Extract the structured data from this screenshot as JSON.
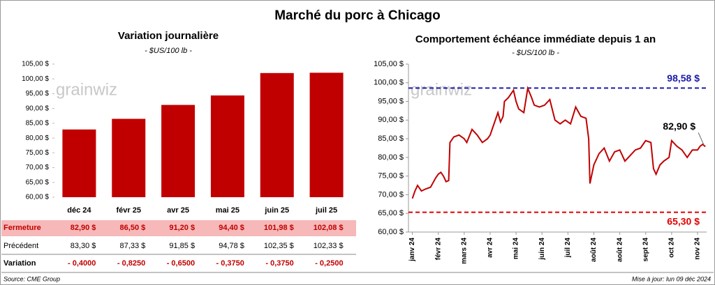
{
  "title": "Marché du porc à Chicago",
  "logo": "grainwiz",
  "chart_data": [
    {
      "type": "bar",
      "title": "Variation journalière",
      "subtitle": "- $US/100 lb -",
      "categories": [
        "déc 24",
        "févr 25",
        "avr 25",
        "mai 25",
        "juin 25",
        "juil 25"
      ],
      "values": [
        82.9,
        86.5,
        91.2,
        94.4,
        101.98,
        102.08
      ],
      "color": "#c00000",
      "ylim": [
        60,
        105
      ],
      "yticks": [
        {
          "value": 60,
          "label": "60,00 $"
        },
        {
          "value": 65,
          "label": "65,00 $"
        },
        {
          "value": 70,
          "label": "70,00 $"
        },
        {
          "value": 75,
          "label": "75,00 $"
        },
        {
          "value": 80,
          "label": "80,00 $"
        },
        {
          "value": 85,
          "label": "85,00 $"
        },
        {
          "value": 90,
          "label": "90,00 $"
        },
        {
          "value": 95,
          "label": "95,00 $"
        },
        {
          "value": 100,
          "label": "100,00 $"
        },
        {
          "value": 105,
          "label": "105,00 $"
        }
      ]
    },
    {
      "type": "line",
      "title": "Comportement échéance immédiate depuis 1 an",
      "subtitle": "- $US/100 lb -",
      "color": "#c00000",
      "x": [
        0,
        0.1,
        0.2,
        0.35,
        0.5,
        0.7,
        0.9,
        1.0,
        1.1,
        1.2,
        1.3,
        1.4,
        1.45,
        1.6,
        1.8,
        2.0,
        2.1,
        2.3,
        2.5,
        2.7,
        2.9,
        3.0,
        3.1,
        3.3,
        3.4,
        3.5,
        3.55,
        3.7,
        3.9,
        4.0,
        4.1,
        4.3,
        4.45,
        4.6,
        4.7,
        4.9,
        5.1,
        5.3,
        5.5,
        5.7,
        5.9,
        6.1,
        6.3,
        6.5,
        6.7,
        6.8,
        6.85,
        7.0,
        7.2,
        7.4,
        7.6,
        7.8,
        8.0,
        8.2,
        8.4,
        8.6,
        8.8,
        9.0,
        9.2,
        9.3,
        9.4,
        9.55,
        9.7,
        9.9,
        10.0,
        10.2,
        10.4,
        10.6,
        10.8,
        11.0,
        11.1,
        11.2,
        11.3
      ],
      "values": [
        69,
        71,
        72.5,
        71,
        71.5,
        72,
        74.5,
        75.5,
        76,
        75,
        73.5,
        73.8,
        84,
        85.5,
        86,
        85,
        84,
        87.5,
        86,
        84,
        85,
        86,
        88,
        92,
        89.5,
        91,
        95,
        96,
        98,
        95,
        93,
        92,
        98.5,
        96,
        94,
        93.5,
        94,
        95.5,
        90,
        89,
        90,
        89,
        93.5,
        91,
        90.5,
        85,
        73,
        78,
        81,
        82.5,
        79,
        81.5,
        82,
        79,
        80.5,
        82,
        82.5,
        84.5,
        84,
        77,
        75.5,
        78,
        79,
        80,
        84.5,
        83,
        82,
        80,
        82,
        82,
        83,
        83.5,
        82.9
      ],
      "xlim": [
        -0.15,
        11.35
      ],
      "xticks": [
        {
          "value": 0,
          "label": "janv 24"
        },
        {
          "value": 1,
          "label": "févr 24"
        },
        {
          "value": 2,
          "label": "mars 24"
        },
        {
          "value": 3,
          "label": "avr 24"
        },
        {
          "value": 4,
          "label": "mai 24"
        },
        {
          "value": 5,
          "label": "juin 24"
        },
        {
          "value": 6,
          "label": "juil 24"
        },
        {
          "value": 7,
          "label": "août 24"
        },
        {
          "value": 8,
          "label": "août 24"
        },
        {
          "value": 9,
          "label": "sept 24"
        },
        {
          "value": 10,
          "label": "oct 24"
        },
        {
          "value": 11,
          "label": "nov 24"
        }
      ],
      "ylim": [
        60,
        105
      ],
      "yticks": [
        {
          "value": 60,
          "label": "60,00 $"
        },
        {
          "value": 65,
          "label": "65,00 $"
        },
        {
          "value": 70,
          "label": "70,00 $"
        },
        {
          "value": 75,
          "label": "75,00 $"
        },
        {
          "value": 80,
          "label": "80,00 $"
        },
        {
          "value": 85,
          "label": "85,00 $"
        },
        {
          "value": 90,
          "label": "90,00 $"
        },
        {
          "value": 95,
          "label": "95,00 $"
        },
        {
          "value": 100,
          "label": "100,00 $"
        },
        {
          "value": 105,
          "label": "105,00 $"
        }
      ],
      "hlines": [
        {
          "value": 98.58,
          "label": "98,58 $",
          "color": "#1a1aa6"
        },
        {
          "value": 65.3,
          "label": "65,30 $",
          "color": "#e00000"
        }
      ],
      "annotations": [
        {
          "x": 11.3,
          "y": 82.9,
          "label": "82,90 $"
        }
      ]
    }
  ],
  "table": {
    "rows": [
      [
        "Fermeture",
        "82,90 $",
        "86,50 $",
        "91,20 $",
        "94,40 $",
        "101,98 $",
        "102,08 $"
      ],
      [
        "Précédent",
        "83,30 $",
        "87,33 $",
        "91,85 $",
        "94,78 $",
        "102,35 $",
        "102,33 $"
      ],
      [
        "Variation",
        "- 0,4000",
        "- 0,8250",
        "- 0,6500",
        "- 0,3750",
        "- 0,3750",
        "- 0,2500"
      ]
    ]
  },
  "source": "Source: CME Group",
  "updated": "Mise à jour: lun 09 déc 2024"
}
